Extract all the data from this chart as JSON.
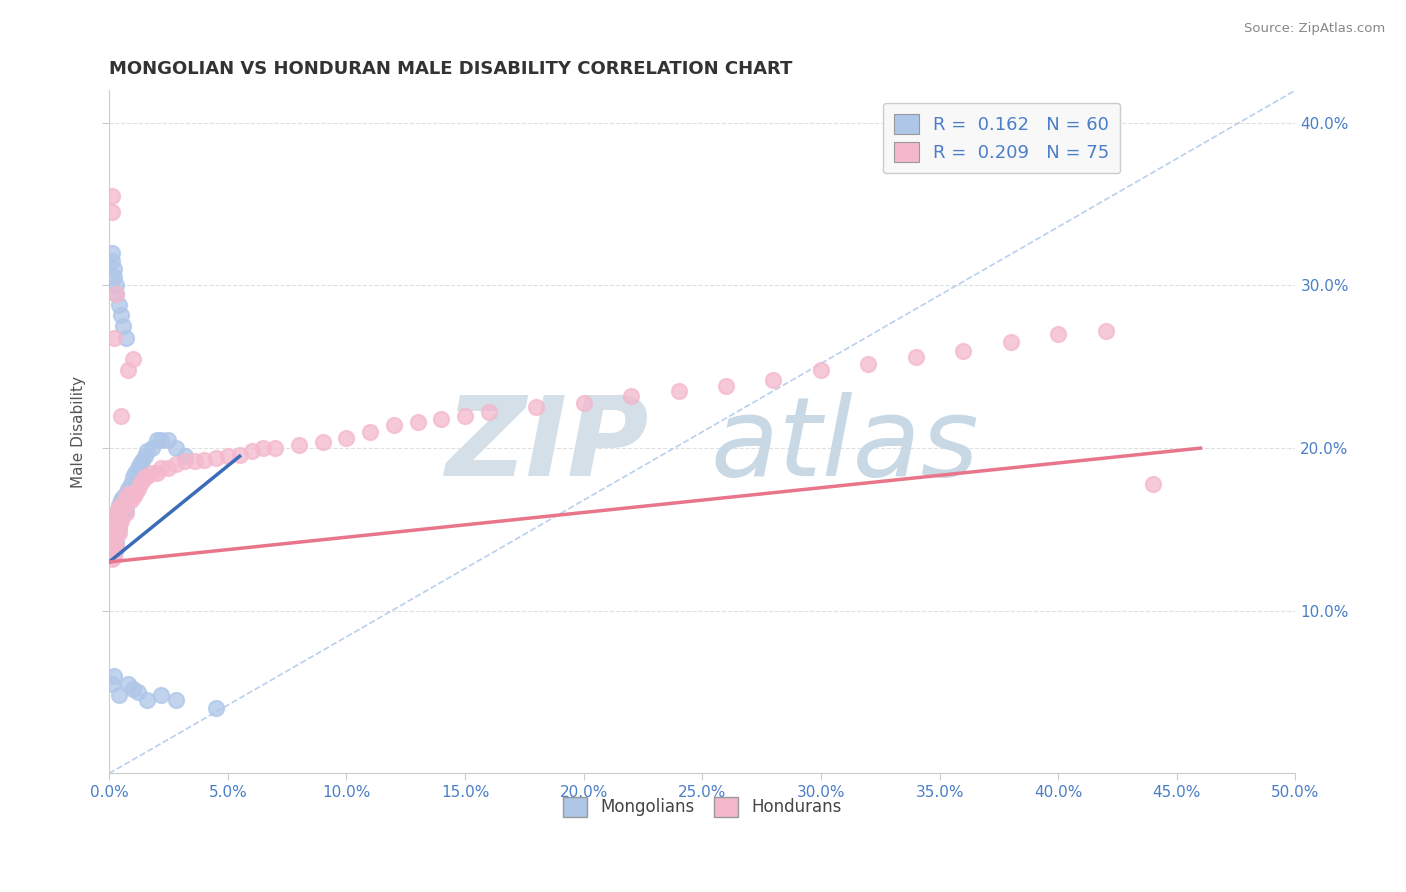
{
  "title": "MONGOLIAN VS HONDURAN MALE DISABILITY CORRELATION CHART",
  "source": "Source: ZipAtlas.com",
  "ylabel": "Male Disability",
  "xlim": [
    0.0,
    0.5
  ],
  "ylim": [
    0.0,
    0.42
  ],
  "mongolian_R": "0.162",
  "mongolian_N": "60",
  "honduran_R": "0.209",
  "honduran_N": "75",
  "mongolian_color": "#aec6e8",
  "honduran_color": "#f4b8cc",
  "mongolian_line_color": "#3a6cb8",
  "honduran_line_color": "#e8758a",
  "ref_line_color": "#a8c4e8",
  "background_color": "#ffffff",
  "grid_color": "#e0e0e0",
  "watermark_zip_color": "#d4dfe8",
  "watermark_atlas_color": "#c8d8e4",
  "legend_face_color": "#f8f8f8",
  "legend_edge_color": "#cccccc",
  "text_color": "#4a7ec7",
  "title_color": "#333333",
  "ylabel_color": "#555555",
  "source_color": "#888888",
  "x_ticks": [
    0.0,
    0.05,
    0.1,
    0.15,
    0.2,
    0.25,
    0.3,
    0.35,
    0.4,
    0.45,
    0.5
  ],
  "y_ticks": [
    0.1,
    0.2,
    0.3,
    0.4
  ],
  "mong_x": [
    0.001,
    0.001,
    0.001,
    0.001,
    0.001,
    0.002,
    0.002,
    0.002,
    0.002,
    0.002,
    0.002,
    0.003,
    0.003,
    0.003,
    0.003,
    0.003,
    0.004,
    0.004,
    0.004,
    0.005,
    0.005,
    0.006,
    0.006,
    0.007,
    0.007,
    0.008,
    0.009,
    0.01,
    0.011,
    0.012,
    0.013,
    0.014,
    0.015,
    0.016,
    0.018,
    0.02,
    0.022,
    0.025,
    0.028,
    0.032,
    0.001,
    0.001,
    0.002,
    0.002,
    0.003,
    0.003,
    0.004,
    0.005,
    0.006,
    0.007,
    0.001,
    0.002,
    0.004,
    0.008,
    0.01,
    0.012,
    0.016,
    0.022,
    0.028,
    0.045
  ],
  "mong_y": [
    0.155,
    0.15,
    0.148,
    0.145,
    0.14,
    0.158,
    0.152,
    0.148,
    0.143,
    0.138,
    0.135,
    0.16,
    0.155,
    0.148,
    0.142,
    0.138,
    0.165,
    0.158,
    0.15,
    0.168,
    0.158,
    0.17,
    0.162,
    0.172,
    0.162,
    0.175,
    0.178,
    0.182,
    0.185,
    0.188,
    0.19,
    0.192,
    0.195,
    0.198,
    0.2,
    0.205,
    0.205,
    0.205,
    0.2,
    0.195,
    0.32,
    0.315,
    0.31,
    0.305,
    0.3,
    0.295,
    0.288,
    0.282,
    0.275,
    0.268,
    0.055,
    0.06,
    0.048,
    0.055,
    0.052,
    0.05,
    0.045,
    0.048,
    0.045,
    0.04
  ],
  "hond_x": [
    0.001,
    0.001,
    0.001,
    0.001,
    0.001,
    0.002,
    0.002,
    0.002,
    0.002,
    0.002,
    0.003,
    0.003,
    0.003,
    0.003,
    0.004,
    0.004,
    0.004,
    0.005,
    0.005,
    0.006,
    0.007,
    0.007,
    0.008,
    0.009,
    0.01,
    0.011,
    0.012,
    0.013,
    0.014,
    0.015,
    0.016,
    0.018,
    0.02,
    0.022,
    0.025,
    0.028,
    0.032,
    0.036,
    0.04,
    0.045,
    0.05,
    0.055,
    0.06,
    0.065,
    0.07,
    0.08,
    0.09,
    0.1,
    0.11,
    0.12,
    0.13,
    0.14,
    0.15,
    0.16,
    0.18,
    0.2,
    0.22,
    0.24,
    0.26,
    0.28,
    0.3,
    0.32,
    0.34,
    0.36,
    0.38,
    0.4,
    0.42,
    0.44,
    0.001,
    0.001,
    0.002,
    0.003,
    0.005,
    0.008,
    0.01
  ],
  "hond_y": [
    0.155,
    0.148,
    0.143,
    0.138,
    0.132,
    0.158,
    0.152,
    0.145,
    0.14,
    0.133,
    0.16,
    0.153,
    0.147,
    0.14,
    0.163,
    0.155,
    0.148,
    0.165,
    0.155,
    0.165,
    0.17,
    0.16,
    0.172,
    0.168,
    0.17,
    0.172,
    0.175,
    0.178,
    0.18,
    0.182,
    0.183,
    0.185,
    0.185,
    0.188,
    0.188,
    0.19,
    0.192,
    0.192,
    0.193,
    0.194,
    0.195,
    0.196,
    0.198,
    0.2,
    0.2,
    0.202,
    0.204,
    0.206,
    0.21,
    0.214,
    0.216,
    0.218,
    0.22,
    0.222,
    0.225,
    0.228,
    0.232,
    0.235,
    0.238,
    0.242,
    0.248,
    0.252,
    0.256,
    0.26,
    0.265,
    0.27,
    0.272,
    0.178,
    0.345,
    0.355,
    0.268,
    0.295,
    0.22,
    0.248,
    0.255
  ],
  "mong_trend_x": [
    0.0,
    0.055
  ],
  "mong_trend_y": [
    0.13,
    0.195
  ],
  "hond_trend_x": [
    0.0,
    0.46
  ],
  "hond_trend_y": [
    0.13,
    0.2
  ],
  "ref_line_x": [
    0.0,
    0.5
  ],
  "ref_line_y": [
    0.0,
    0.42
  ]
}
